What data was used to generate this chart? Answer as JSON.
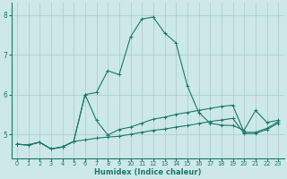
{
  "xlabel": "Humidex (Indice chaleur)",
  "ylabel": "",
  "bg_color": "#cce8e8",
  "grid_color": "#aacccc",
  "line_color": "#1a7a6a",
  "xlim": [
    -0.5,
    23.5
  ],
  "ylim": [
    4.4,
    8.3
  ],
  "yticks": [
    5,
    6,
    7,
    8
  ],
  "xticks": [
    0,
    1,
    2,
    3,
    4,
    5,
    6,
    7,
    8,
    9,
    10,
    11,
    12,
    13,
    14,
    15,
    16,
    17,
    18,
    19,
    20,
    21,
    22,
    23
  ],
  "line1_x": [
    0,
    1,
    2,
    3,
    4,
    5,
    6,
    7,
    8,
    9,
    10,
    11,
    12,
    13,
    14,
    15,
    16,
    17,
    18,
    19,
    20,
    21,
    22,
    23
  ],
  "line1_y": [
    4.75,
    4.73,
    4.8,
    4.63,
    4.68,
    4.82,
    4.86,
    4.9,
    4.93,
    4.95,
    5.0,
    5.05,
    5.1,
    5.13,
    5.18,
    5.22,
    5.27,
    5.32,
    5.36,
    5.4,
    5.02,
    5.02,
    5.12,
    5.28
  ],
  "line2_x": [
    0,
    1,
    2,
    3,
    4,
    5,
    6,
    7,
    8,
    9,
    10,
    11,
    12,
    13,
    14,
    15,
    16,
    17,
    18,
    19,
    20,
    21,
    22,
    23
  ],
  "line2_y": [
    4.75,
    4.73,
    4.8,
    4.63,
    4.68,
    4.82,
    6.0,
    6.05,
    6.6,
    6.5,
    7.45,
    7.9,
    7.95,
    7.55,
    7.3,
    6.22,
    5.55,
    5.28,
    5.23,
    5.22,
    5.1,
    5.6,
    5.3,
    5.35
  ],
  "line3_x": [
    0,
    1,
    2,
    3,
    4,
    5,
    6,
    7,
    8,
    9,
    10,
    11,
    12,
    13,
    14,
    15,
    16,
    17,
    18,
    19,
    20,
    21,
    22,
    23
  ],
  "line3_y": [
    4.75,
    4.73,
    4.8,
    4.63,
    4.68,
    4.82,
    6.0,
    5.35,
    4.98,
    5.12,
    5.18,
    5.28,
    5.38,
    5.43,
    5.5,
    5.55,
    5.6,
    5.65,
    5.7,
    5.73,
    5.05,
    5.05,
    5.15,
    5.32
  ]
}
